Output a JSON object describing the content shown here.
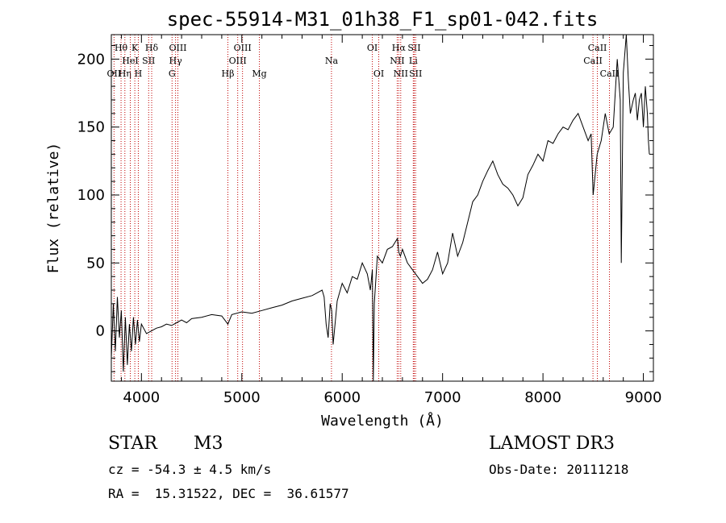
{
  "chart_data": {
    "type": "line",
    "title": "spec-55914-M31_01h38_F1_sp01-042.fits",
    "xlabel": "Wavelength (Å)",
    "ylabel": "Flux (relative)",
    "xlim": [
      3700,
      9100
    ],
    "ylim": [
      -37,
      218
    ],
    "xticks": [
      4000,
      5000,
      6000,
      7000,
      8000,
      9000
    ],
    "yticks": [
      0,
      50,
      100,
      150,
      200
    ],
    "grid": false,
    "series": [
      {
        "name": "flux",
        "x": [
          3700,
          3720,
          3740,
          3760,
          3780,
          3800,
          3820,
          3840,
          3860,
          3880,
          3900,
          3920,
          3940,
          3960,
          3980,
          4000,
          4050,
          4100,
          4150,
          4200,
          4250,
          4300,
          4350,
          4400,
          4450,
          4500,
          4600,
          4700,
          4800,
          4861,
          4900,
          5000,
          5100,
          5200,
          5300,
          5400,
          5500,
          5600,
          5700,
          5750,
          5800,
          5820,
          5840,
          5860,
          5880,
          5895,
          5910,
          5950,
          6000,
          6050,
          6100,
          6150,
          6200,
          6250,
          6280,
          6300,
          6310,
          6320,
          6350,
          6400,
          6450,
          6500,
          6550,
          6563,
          6580,
          6600,
          6650,
          6700,
          6750,
          6800,
          6850,
          6900,
          6950,
          7000,
          7050,
          7100,
          7150,
          7200,
          7250,
          7300,
          7350,
          7400,
          7450,
          7500,
          7550,
          7600,
          7650,
          7700,
          7750,
          7800,
          7850,
          7900,
          7950,
          8000,
          8050,
          8100,
          8150,
          8200,
          8250,
          8300,
          8350,
          8400,
          8450,
          8480,
          8500,
          8540,
          8580,
          8620,
          8660,
          8700,
          8740,
          8770,
          8780,
          8800,
          8830,
          8850,
          8870,
          8900,
          8920,
          8940,
          8960,
          8980,
          9000,
          9020,
          9040,
          9050,
          9060
        ],
        "y": [
          -20,
          20,
          -15,
          25,
          -5,
          15,
          -30,
          10,
          -25,
          5,
          -15,
          10,
          -10,
          8,
          -8,
          5,
          -2,
          0,
          2,
          3,
          5,
          4,
          6,
          8,
          6,
          9,
          10,
          12,
          11,
          5,
          12,
          14,
          13,
          15,
          17,
          19,
          22,
          24,
          26,
          28,
          30,
          25,
          5,
          -5,
          20,
          15,
          -10,
          22,
          35,
          28,
          40,
          38,
          50,
          42,
          30,
          45,
          -37,
          20,
          55,
          50,
          60,
          62,
          68,
          58,
          55,
          60,
          50,
          45,
          40,
          35,
          38,
          45,
          58,
          42,
          50,
          72,
          55,
          65,
          80,
          95,
          100,
          110,
          118,
          125,
          115,
          108,
          105,
          100,
          92,
          98,
          115,
          122,
          130,
          125,
          140,
          138,
          145,
          150,
          148,
          155,
          160,
          150,
          140,
          145,
          100,
          130,
          140,
          160,
          145,
          150,
          200,
          170,
          50,
          190,
          220,
          185,
          160,
          170,
          175,
          155,
          170,
          175,
          150,
          180,
          160,
          140,
          130
        ]
      }
    ],
    "lines": [
      {
        "name": "Hθ",
        "wl": 3797,
        "row": 1
      },
      {
        "name": "OII",
        "wl": 3727,
        "row": 3
      },
      {
        "name": "Hη",
        "wl": 3835,
        "row": 3
      },
      {
        "name": "HeI",
        "wl": 3889,
        "row": 2
      },
      {
        "name": "K",
        "wl": 3934,
        "row": 1
      },
      {
        "name": "H",
        "wl": 3969,
        "row": 3
      },
      {
        "name": "SII",
        "wl": 4072,
        "row": 2
      },
      {
        "name": "Hδ",
        "wl": 4102,
        "row": 1
      },
      {
        "name": "Hγ",
        "wl": 4340,
        "row": 2
      },
      {
        "name": "G",
        "wl": 4305,
        "row": 3
      },
      {
        "name": "OIII",
        "wl": 4363,
        "row": 1
      },
      {
        "name": "Hβ",
        "wl": 4861,
        "row": 3
      },
      {
        "name": "OIII",
        "wl": 4959,
        "row": 2
      },
      {
        "name": "OIII",
        "wl": 5007,
        "row": 1
      },
      {
        "name": "Mg",
        "wl": 5175,
        "row": 3
      },
      {
        "name": "Na",
        "wl": 5893,
        "row": 2
      },
      {
        "name": "OI",
        "wl": 6300,
        "row": 1
      },
      {
        "name": "OI",
        "wl": 6364,
        "row": 3
      },
      {
        "name": "NII",
        "wl": 6548,
        "row": 2
      },
      {
        "name": "Hα",
        "wl": 6563,
        "row": 1
      },
      {
        "name": "NII",
        "wl": 6583,
        "row": 3
      },
      {
        "name": "Li",
        "wl": 6708,
        "row": 2
      },
      {
        "name": "SII",
        "wl": 6717,
        "row": 1
      },
      {
        "name": "SII",
        "wl": 6731,
        "row": 3
      },
      {
        "name": "CaII",
        "wl": 8498,
        "row": 2
      },
      {
        "name": "CaII",
        "wl": 8542,
        "row": 1
      },
      {
        "name": "CaII",
        "wl": 8662,
        "row": 3
      }
    ]
  },
  "info": {
    "class": "STAR",
    "subclass": "M3",
    "cz": "cz = -54.3 ± 4.5 km/s",
    "coords": "RA =  15.31522, DEC =  36.61577",
    "survey": "LAMOST DR3",
    "obs_date": "Obs-Date: 20111218"
  }
}
